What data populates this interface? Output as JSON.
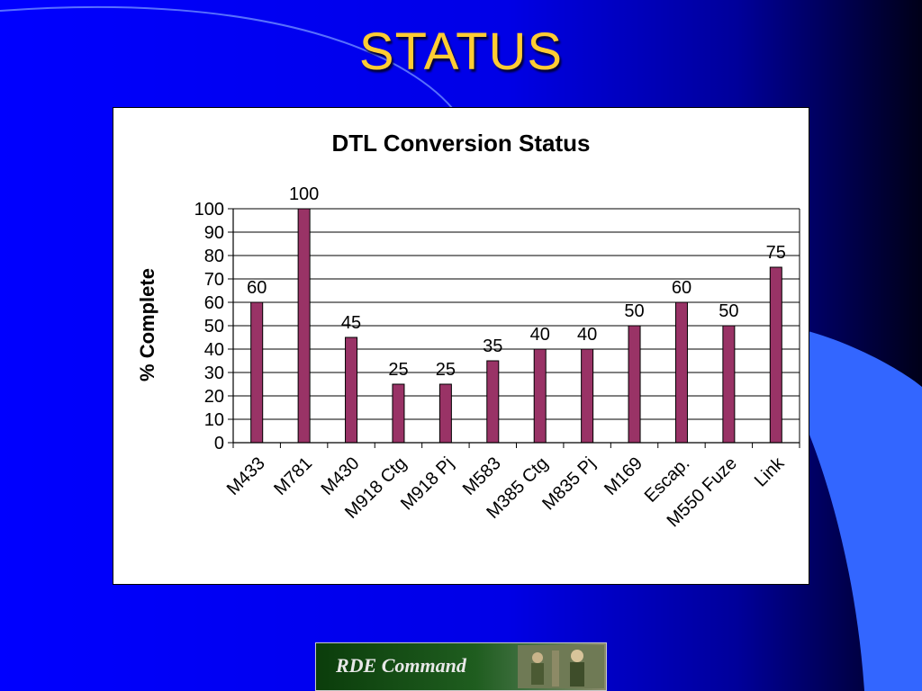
{
  "slide": {
    "title": "STATUS",
    "colors": {
      "background": "#0000FF",
      "title": "#FFCC33",
      "accent_shape": "#3366FF"
    }
  },
  "chart_data": {
    "type": "bar",
    "title": "DTL Conversion Status",
    "xlabel": "",
    "ylabel": "% Complete",
    "ylim": [
      0,
      100
    ],
    "yticks": [
      0,
      10,
      20,
      30,
      40,
      50,
      60,
      70,
      80,
      90,
      100
    ],
    "grid": true,
    "legend": "none",
    "bar_color": "#993366",
    "categories": [
      "M433",
      "M781",
      "M430",
      "M918 Ctg",
      "M918 Pj",
      "M583",
      "M385 Ctg",
      "M835 Pj",
      "M169",
      "Escap.",
      "M550 Fuze",
      "Link"
    ],
    "values": [
      60,
      100,
      45,
      25,
      25,
      35,
      40,
      40,
      50,
      60,
      50,
      75
    ]
  },
  "logo": {
    "text": "RDE Command"
  }
}
